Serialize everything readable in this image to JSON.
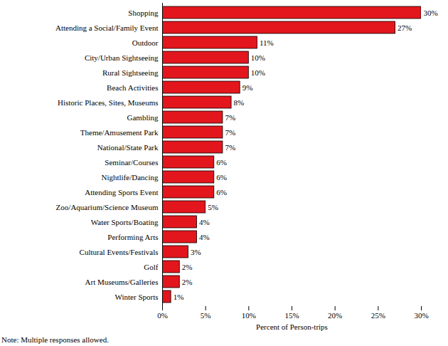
{
  "chart_data": {
    "type": "bar",
    "orientation": "horizontal",
    "categories": [
      "Shopping",
      "Attending a Social/Family Event",
      "Outdoor",
      "City/Urban Sightseeing",
      "Rural Sightseeing",
      "Beach Activities",
      "Historic Places, Sites, Museums",
      "Gambling",
      "Theme/Amusement Park",
      "National/State Park",
      "Seminar/Courses",
      "Nightlife/Dancing",
      "Attending Sports Event",
      "Zoo/Aquarium/Science Museum",
      "Water Sports/Boating",
      "Performing Arts",
      "Cultural Events/Festivals",
      "Golf",
      "Art Museums/Galleries",
      "Winter Sports"
    ],
    "values": [
      30,
      27,
      11,
      10,
      10,
      9,
      8,
      7,
      7,
      7,
      6,
      6,
      6,
      5,
      4,
      4,
      3,
      2,
      2,
      1
    ],
    "value_labels": [
      "30%",
      "27%",
      "11%",
      "10%",
      "10%",
      "9%",
      "8%",
      "7%",
      "7%",
      "7%",
      "6%",
      "6%",
      "6%",
      "5%",
      "4%",
      "4%",
      "3%",
      "2%",
      "2%",
      "1%"
    ],
    "data_labels": true,
    "color": "#e3161d",
    "xlim": [
      0,
      30
    ],
    "xticks": [
      {
        "value": 0,
        "label": "0%"
      },
      {
        "value": 5,
        "label": "5%"
      },
      {
        "value": 10,
        "label": "10%"
      },
      {
        "value": 15,
        "label": "15%"
      },
      {
        "value": 20,
        "label": "20%"
      },
      {
        "value": 25,
        "label": "25%"
      },
      {
        "value": 30,
        "label": "30%"
      }
    ],
    "x_label": "Percent of Person-trips",
    "grid": false,
    "annotations": [
      "Note: Multiple responses allowed."
    ]
  }
}
